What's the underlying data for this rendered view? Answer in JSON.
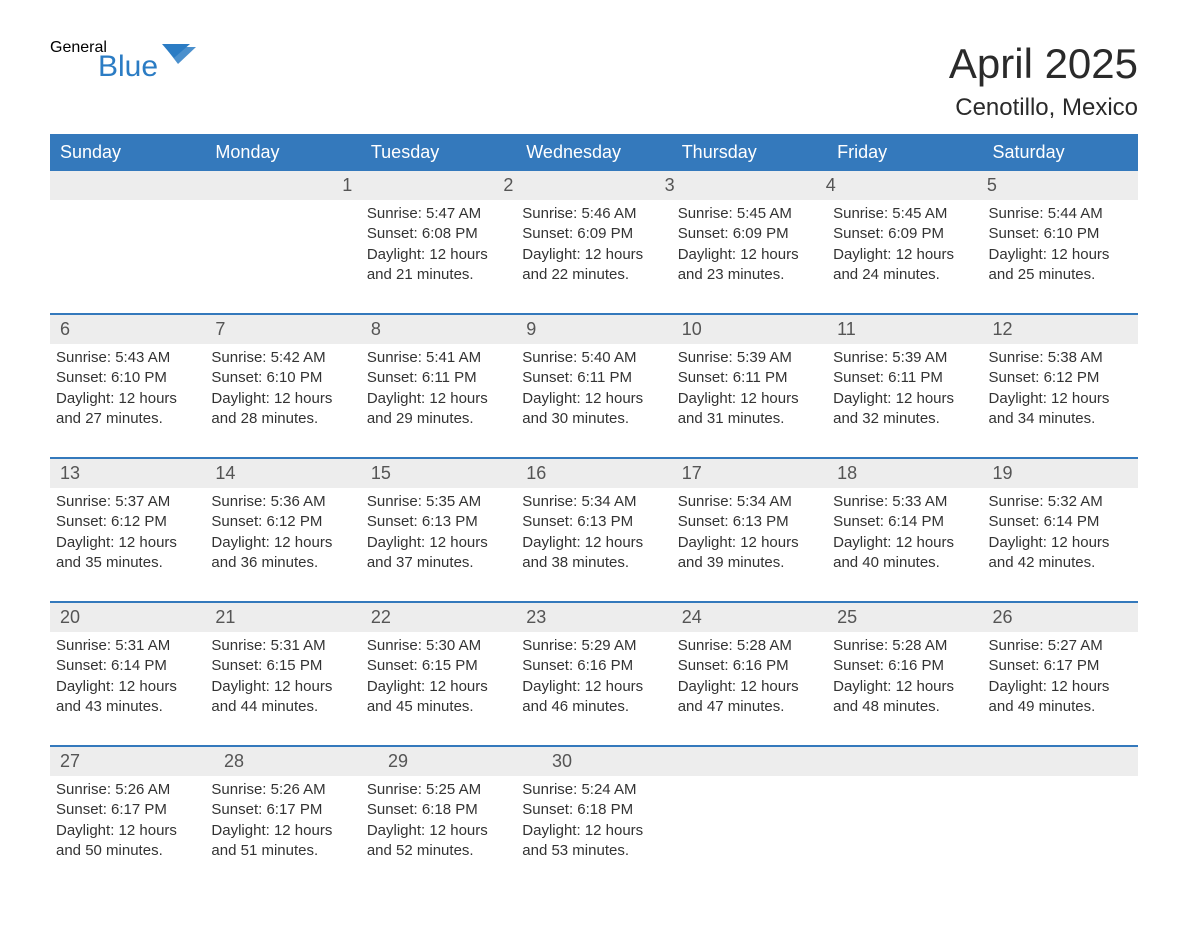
{
  "logo": {
    "general": "General",
    "blue": "Blue",
    "flag_color": "#2b7cc4"
  },
  "title": "April 2025",
  "location": "Cenotillo, Mexico",
  "colors": {
    "header_bg": "#3479bc",
    "header_text": "#ffffff",
    "daynum_bg": "#ededed",
    "daynum_text": "#555555",
    "body_text": "#333333",
    "week_border": "#3479bc"
  },
  "weekdays": [
    "Sunday",
    "Monday",
    "Tuesday",
    "Wednesday",
    "Thursday",
    "Friday",
    "Saturday"
  ],
  "weeks": [
    [
      null,
      null,
      {
        "day": "1",
        "sunrise": "Sunrise: 5:47 AM",
        "sunset": "Sunset: 6:08 PM",
        "daylight1": "Daylight: 12 hours",
        "daylight2": "and 21 minutes."
      },
      {
        "day": "2",
        "sunrise": "Sunrise: 5:46 AM",
        "sunset": "Sunset: 6:09 PM",
        "daylight1": "Daylight: 12 hours",
        "daylight2": "and 22 minutes."
      },
      {
        "day": "3",
        "sunrise": "Sunrise: 5:45 AM",
        "sunset": "Sunset: 6:09 PM",
        "daylight1": "Daylight: 12 hours",
        "daylight2": "and 23 minutes."
      },
      {
        "day": "4",
        "sunrise": "Sunrise: 5:45 AM",
        "sunset": "Sunset: 6:09 PM",
        "daylight1": "Daylight: 12 hours",
        "daylight2": "and 24 minutes."
      },
      {
        "day": "5",
        "sunrise": "Sunrise: 5:44 AM",
        "sunset": "Sunset: 6:10 PM",
        "daylight1": "Daylight: 12 hours",
        "daylight2": "and 25 minutes."
      }
    ],
    [
      {
        "day": "6",
        "sunrise": "Sunrise: 5:43 AM",
        "sunset": "Sunset: 6:10 PM",
        "daylight1": "Daylight: 12 hours",
        "daylight2": "and 27 minutes."
      },
      {
        "day": "7",
        "sunrise": "Sunrise: 5:42 AM",
        "sunset": "Sunset: 6:10 PM",
        "daylight1": "Daylight: 12 hours",
        "daylight2": "and 28 minutes."
      },
      {
        "day": "8",
        "sunrise": "Sunrise: 5:41 AM",
        "sunset": "Sunset: 6:11 PM",
        "daylight1": "Daylight: 12 hours",
        "daylight2": "and 29 minutes."
      },
      {
        "day": "9",
        "sunrise": "Sunrise: 5:40 AM",
        "sunset": "Sunset: 6:11 PM",
        "daylight1": "Daylight: 12 hours",
        "daylight2": "and 30 minutes."
      },
      {
        "day": "10",
        "sunrise": "Sunrise: 5:39 AM",
        "sunset": "Sunset: 6:11 PM",
        "daylight1": "Daylight: 12 hours",
        "daylight2": "and 31 minutes."
      },
      {
        "day": "11",
        "sunrise": "Sunrise: 5:39 AM",
        "sunset": "Sunset: 6:11 PM",
        "daylight1": "Daylight: 12 hours",
        "daylight2": "and 32 minutes."
      },
      {
        "day": "12",
        "sunrise": "Sunrise: 5:38 AM",
        "sunset": "Sunset: 6:12 PM",
        "daylight1": "Daylight: 12 hours",
        "daylight2": "and 34 minutes."
      }
    ],
    [
      {
        "day": "13",
        "sunrise": "Sunrise: 5:37 AM",
        "sunset": "Sunset: 6:12 PM",
        "daylight1": "Daylight: 12 hours",
        "daylight2": "and 35 minutes."
      },
      {
        "day": "14",
        "sunrise": "Sunrise: 5:36 AM",
        "sunset": "Sunset: 6:12 PM",
        "daylight1": "Daylight: 12 hours",
        "daylight2": "and 36 minutes."
      },
      {
        "day": "15",
        "sunrise": "Sunrise: 5:35 AM",
        "sunset": "Sunset: 6:13 PM",
        "daylight1": "Daylight: 12 hours",
        "daylight2": "and 37 minutes."
      },
      {
        "day": "16",
        "sunrise": "Sunrise: 5:34 AM",
        "sunset": "Sunset: 6:13 PM",
        "daylight1": "Daylight: 12 hours",
        "daylight2": "and 38 minutes."
      },
      {
        "day": "17",
        "sunrise": "Sunrise: 5:34 AM",
        "sunset": "Sunset: 6:13 PM",
        "daylight1": "Daylight: 12 hours",
        "daylight2": "and 39 minutes."
      },
      {
        "day": "18",
        "sunrise": "Sunrise: 5:33 AM",
        "sunset": "Sunset: 6:14 PM",
        "daylight1": "Daylight: 12 hours",
        "daylight2": "and 40 minutes."
      },
      {
        "day": "19",
        "sunrise": "Sunrise: 5:32 AM",
        "sunset": "Sunset: 6:14 PM",
        "daylight1": "Daylight: 12 hours",
        "daylight2": "and 42 minutes."
      }
    ],
    [
      {
        "day": "20",
        "sunrise": "Sunrise: 5:31 AM",
        "sunset": "Sunset: 6:14 PM",
        "daylight1": "Daylight: 12 hours",
        "daylight2": "and 43 minutes."
      },
      {
        "day": "21",
        "sunrise": "Sunrise: 5:31 AM",
        "sunset": "Sunset: 6:15 PM",
        "daylight1": "Daylight: 12 hours",
        "daylight2": "and 44 minutes."
      },
      {
        "day": "22",
        "sunrise": "Sunrise: 5:30 AM",
        "sunset": "Sunset: 6:15 PM",
        "daylight1": "Daylight: 12 hours",
        "daylight2": "and 45 minutes."
      },
      {
        "day": "23",
        "sunrise": "Sunrise: 5:29 AM",
        "sunset": "Sunset: 6:16 PM",
        "daylight1": "Daylight: 12 hours",
        "daylight2": "and 46 minutes."
      },
      {
        "day": "24",
        "sunrise": "Sunrise: 5:28 AM",
        "sunset": "Sunset: 6:16 PM",
        "daylight1": "Daylight: 12 hours",
        "daylight2": "and 47 minutes."
      },
      {
        "day": "25",
        "sunrise": "Sunrise: 5:28 AM",
        "sunset": "Sunset: 6:16 PM",
        "daylight1": "Daylight: 12 hours",
        "daylight2": "and 48 minutes."
      },
      {
        "day": "26",
        "sunrise": "Sunrise: 5:27 AM",
        "sunset": "Sunset: 6:17 PM",
        "daylight1": "Daylight: 12 hours",
        "daylight2": "and 49 minutes."
      }
    ],
    [
      {
        "day": "27",
        "sunrise": "Sunrise: 5:26 AM",
        "sunset": "Sunset: 6:17 PM",
        "daylight1": "Daylight: 12 hours",
        "daylight2": "and 50 minutes."
      },
      {
        "day": "28",
        "sunrise": "Sunrise: 5:26 AM",
        "sunset": "Sunset: 6:17 PM",
        "daylight1": "Daylight: 12 hours",
        "daylight2": "and 51 minutes."
      },
      {
        "day": "29",
        "sunrise": "Sunrise: 5:25 AM",
        "sunset": "Sunset: 6:18 PM",
        "daylight1": "Daylight: 12 hours",
        "daylight2": "and 52 minutes."
      },
      {
        "day": "30",
        "sunrise": "Sunrise: 5:24 AM",
        "sunset": "Sunset: 6:18 PM",
        "daylight1": "Daylight: 12 hours",
        "daylight2": "and 53 minutes."
      },
      null,
      null,
      null
    ]
  ]
}
